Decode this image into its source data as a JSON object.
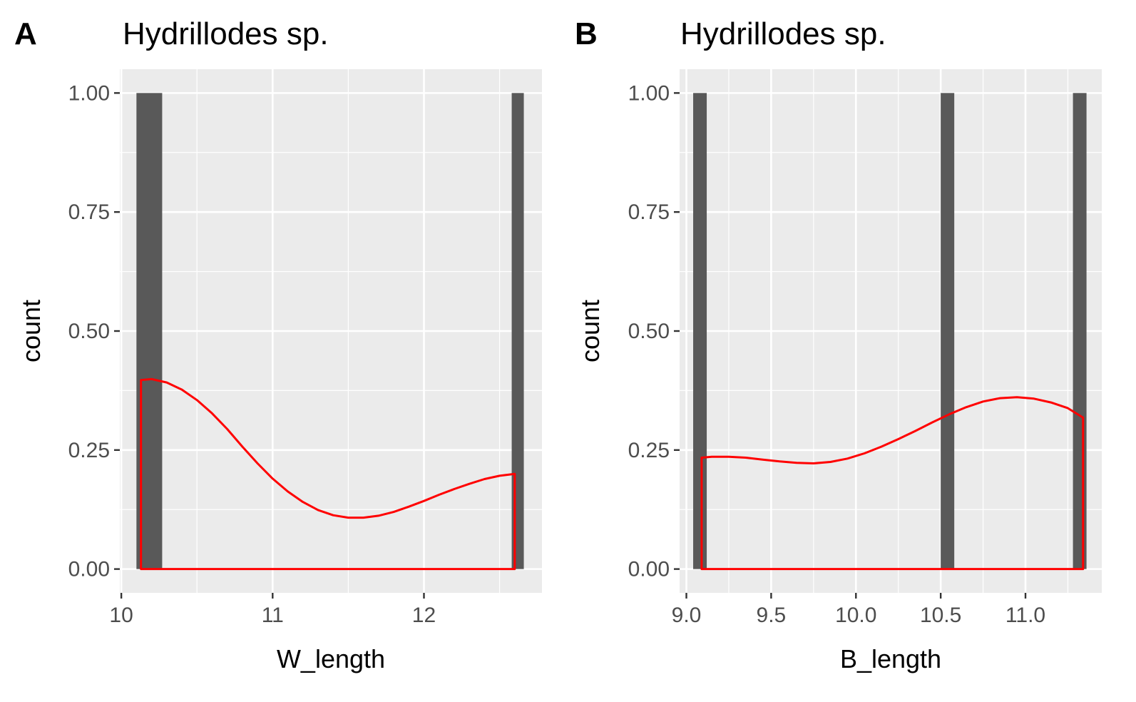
{
  "chart_data": [
    {
      "type": "bar",
      "tag": "A",
      "title": "Hydrillodes sp.",
      "xlabel": "W_length",
      "ylabel": "count",
      "xlim": [
        9.99,
        12.78
      ],
      "ylim": [
        -0.05,
        1.05
      ],
      "x_ticks": [
        10,
        11,
        12
      ],
      "x_tick_labels": [
        "10",
        "11",
        "12"
      ],
      "y_ticks": [
        0,
        0.25,
        0.5,
        0.75,
        1.0
      ],
      "y_tick_labels": [
        "0.00",
        "0.25",
        "0.50",
        "0.75",
        "1.00"
      ],
      "bars": [
        {
          "xmin": 10.1,
          "xmax": 10.27,
          "count": 1
        },
        {
          "xmin": 12.58,
          "xmax": 12.66,
          "count": 1
        }
      ],
      "density": {
        "name": "density",
        "color": "#ff0000",
        "x": [
          10.13,
          10.2,
          10.3,
          10.4,
          10.5,
          10.6,
          10.7,
          10.8,
          10.9,
          11.0,
          11.1,
          11.2,
          11.3,
          11.4,
          11.5,
          11.6,
          11.7,
          11.8,
          11.9,
          12.0,
          12.1,
          12.2,
          12.3,
          12.4,
          12.5,
          12.6
        ],
        "y": [
          0.397,
          0.399,
          0.392,
          0.377,
          0.355,
          0.327,
          0.294,
          0.257,
          0.222,
          0.19,
          0.163,
          0.141,
          0.124,
          0.113,
          0.108,
          0.108,
          0.112,
          0.12,
          0.131,
          0.143,
          0.156,
          0.168,
          0.179,
          0.189,
          0.196,
          0.2
        ]
      },
      "grid": true,
      "background": "#ebebeb",
      "bar_color": "#595959"
    },
    {
      "type": "bar",
      "tag": "B",
      "title": "Hydrillodes sp.",
      "xlabel": "B_length",
      "ylabel": "count",
      "xlim": [
        8.96,
        11.45
      ],
      "ylim": [
        -0.05,
        1.05
      ],
      "x_ticks": [
        9.0,
        9.5,
        10.0,
        10.5,
        11.0
      ],
      "x_tick_labels": [
        "9.0",
        "9.5",
        "10.0",
        "10.5",
        "11.0"
      ],
      "y_ticks": [
        0,
        0.25,
        0.5,
        0.75,
        1.0
      ],
      "y_tick_labels": [
        "0.00",
        "0.25",
        "0.50",
        "0.75",
        "1.00"
      ],
      "bars": [
        {
          "xmin": 9.04,
          "xmax": 9.12,
          "count": 1
        },
        {
          "xmin": 10.5,
          "xmax": 10.58,
          "count": 1
        },
        {
          "xmin": 11.28,
          "xmax": 11.36,
          "count": 1
        }
      ],
      "density": {
        "name": "density",
        "color": "#ff0000",
        "x": [
          9.09,
          9.15,
          9.25,
          9.35,
          9.45,
          9.55,
          9.65,
          9.75,
          9.85,
          9.95,
          10.05,
          10.15,
          10.25,
          10.35,
          10.45,
          10.55,
          10.65,
          10.75,
          10.85,
          10.95,
          11.05,
          11.15,
          11.25,
          11.34
        ],
        "y": [
          0.234,
          0.236,
          0.236,
          0.234,
          0.23,
          0.226,
          0.223,
          0.222,
          0.225,
          0.232,
          0.243,
          0.257,
          0.273,
          0.29,
          0.308,
          0.325,
          0.34,
          0.352,
          0.359,
          0.361,
          0.358,
          0.35,
          0.338,
          0.318
        ]
      },
      "grid": true,
      "background": "#ebebeb",
      "bar_color": "#595959"
    }
  ]
}
